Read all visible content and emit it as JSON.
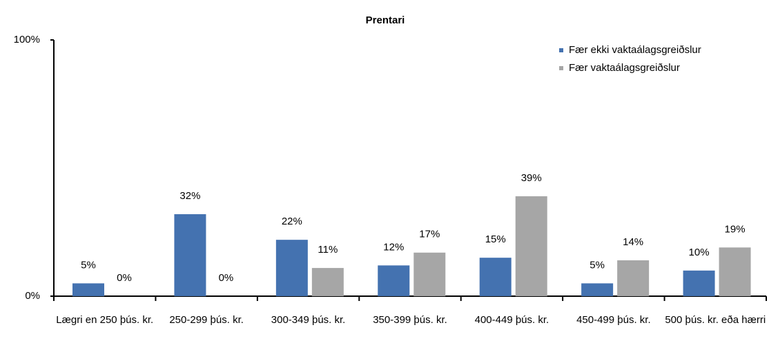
{
  "chart_data": {
    "type": "bar",
    "title": "Prentari",
    "categories": [
      "Lægri en 250 þús. kr.",
      "250-299 þús. kr.",
      "300-349 þús. kr.",
      "350-399 þús. kr.",
      "400-449 þús. kr.",
      "450-499 þús. kr.",
      "500 þús. kr. eða hærri"
    ],
    "series": [
      {
        "name": "Fær ekki vaktaálagsgreiðslur",
        "color": "#4472b0",
        "values": [
          5,
          32,
          22,
          12,
          15,
          5,
          10
        ],
        "value_labels": [
          "5%",
          "32%",
          "22%",
          "12%",
          "15%",
          "5%",
          "10%"
        ]
      },
      {
        "name": "Fær vaktaálagsgreiðslur",
        "color": "#a6a6a6",
        "values": [
          0,
          0,
          11,
          17,
          39,
          14,
          19
        ],
        "value_labels": [
          "0%",
          "0%",
          "11%",
          "17%",
          "39%",
          "14%",
          "19%"
        ]
      }
    ],
    "ylim": [
      0,
      100
    ],
    "yticks": [
      {
        "value": 0,
        "label": "0%"
      },
      {
        "value": 100,
        "label": "100%"
      }
    ],
    "legend": "top-right"
  }
}
